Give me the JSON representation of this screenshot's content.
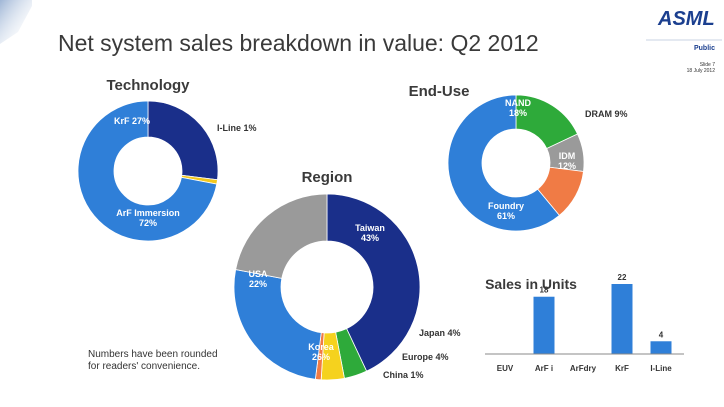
{
  "slide": {
    "title": "Net system sales breakdown in value: Q2 2012",
    "logo": "ASML",
    "classification": "Public",
    "slide_number": "Slide 7",
    "date": "18 July 2012",
    "footnote": "Numbers have been rounded for readers' convenience."
  },
  "chart_data": [
    {
      "type": "pie",
      "title": "Technology",
      "donut": true,
      "slices": [
        {
          "label": "KrF",
          "value": 27,
          "value_label": "27%",
          "color": "#1a2f8a",
          "label_color": "#ffffff"
        },
        {
          "label": "I-Line",
          "value": 1,
          "value_label": "1%",
          "color": "#f2c81e",
          "label_color": "#333333"
        },
        {
          "label": "ArF Immersion",
          "value": 72,
          "value_label": "72%",
          "color": "#2f7fd8",
          "label_color": "#ffffff"
        }
      ]
    },
    {
      "type": "pie",
      "title": "End-Use",
      "donut": true,
      "slices": [
        {
          "label": "NAND",
          "value": 18,
          "value_label": "18%",
          "color": "#2eaa3a",
          "label_color": "#ffffff"
        },
        {
          "label": "DRAM",
          "value": 9,
          "value_label": "9%",
          "color": "#9a9a9a",
          "label_color": "#333333"
        },
        {
          "label": "IDM",
          "value": 12,
          "value_label": "12%",
          "color": "#f07b45",
          "label_color": "#ffffff"
        },
        {
          "label": "Foundry",
          "value": 61,
          "value_label": "61%",
          "color": "#2f7fd8",
          "label_color": "#ffffff"
        }
      ]
    },
    {
      "type": "pie",
      "title": "Region",
      "donut": true,
      "slices": [
        {
          "label": "Taiwan",
          "value": 43,
          "value_label": "43%",
          "color": "#1a2f8a",
          "label_color": "#ffffff"
        },
        {
          "label": "Japan",
          "value": 4,
          "value_label": "4%",
          "color": "#2eaa3a",
          "label_color": "#333333"
        },
        {
          "label": "Europe",
          "value": 4,
          "value_label": "4%",
          "color": "#f5d21e",
          "label_color": "#333333"
        },
        {
          "label": "China",
          "value": 1,
          "value_label": "1%",
          "color": "#f07b45",
          "label_color": "#333333"
        },
        {
          "label": "Korea",
          "value": 26,
          "value_label": "26%",
          "color": "#2f7fd8",
          "label_color": "#ffffff"
        },
        {
          "label": "USA",
          "value": 22,
          "value_label": "22%",
          "color": "#9a9a9a",
          "label_color": "#ffffff"
        }
      ]
    },
    {
      "type": "bar",
      "title": "Sales in Units",
      "categories": [
        "EUV",
        "ArF i",
        "ArFdry",
        "KrF",
        "I-Line"
      ],
      "values": [
        0,
        18,
        0,
        22,
        4
      ],
      "value_labels": [
        "",
        "18",
        "",
        "22",
        "4"
      ],
      "bar_color": "#2f7fd8",
      "ylim": [
        0,
        22
      ]
    }
  ]
}
